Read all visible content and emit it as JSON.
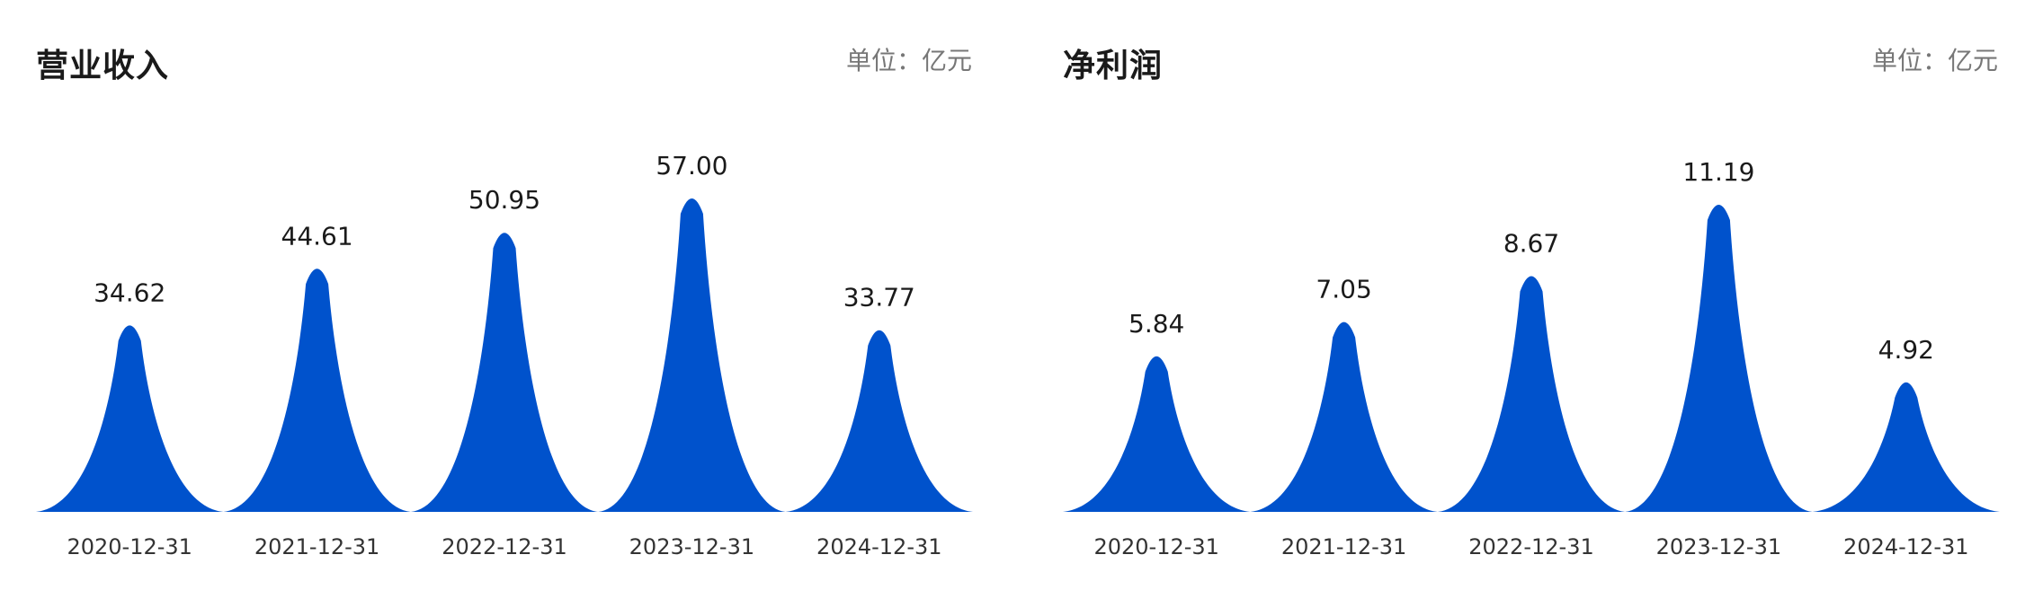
{
  "chart_data": [
    {
      "type": "area",
      "title": "营业收入",
      "unit": "单位：亿元",
      "categories": [
        "2020-12-31",
        "2021-12-31",
        "2022-12-31",
        "2023-12-31",
        "2024-12-31"
      ],
      "values": [
        34.62,
        44.61,
        50.95,
        57.0,
        33.77
      ],
      "value_labels": [
        "34.62",
        "44.61",
        "50.95",
        "57.00",
        "33.77"
      ],
      "color": "#0052CC",
      "grid": false
    },
    {
      "type": "area",
      "title": "净利润",
      "unit": "单位：亿元",
      "categories": [
        "2020-12-31",
        "2021-12-31",
        "2022-12-31",
        "2023-12-31",
        "2024-12-31"
      ],
      "values": [
        5.84,
        7.05,
        8.67,
        11.19,
        4.92
      ],
      "value_labels": [
        "5.84",
        "7.05",
        "8.67",
        "11.19",
        "4.92"
      ],
      "color": "#0052CC",
      "grid": false
    }
  ]
}
